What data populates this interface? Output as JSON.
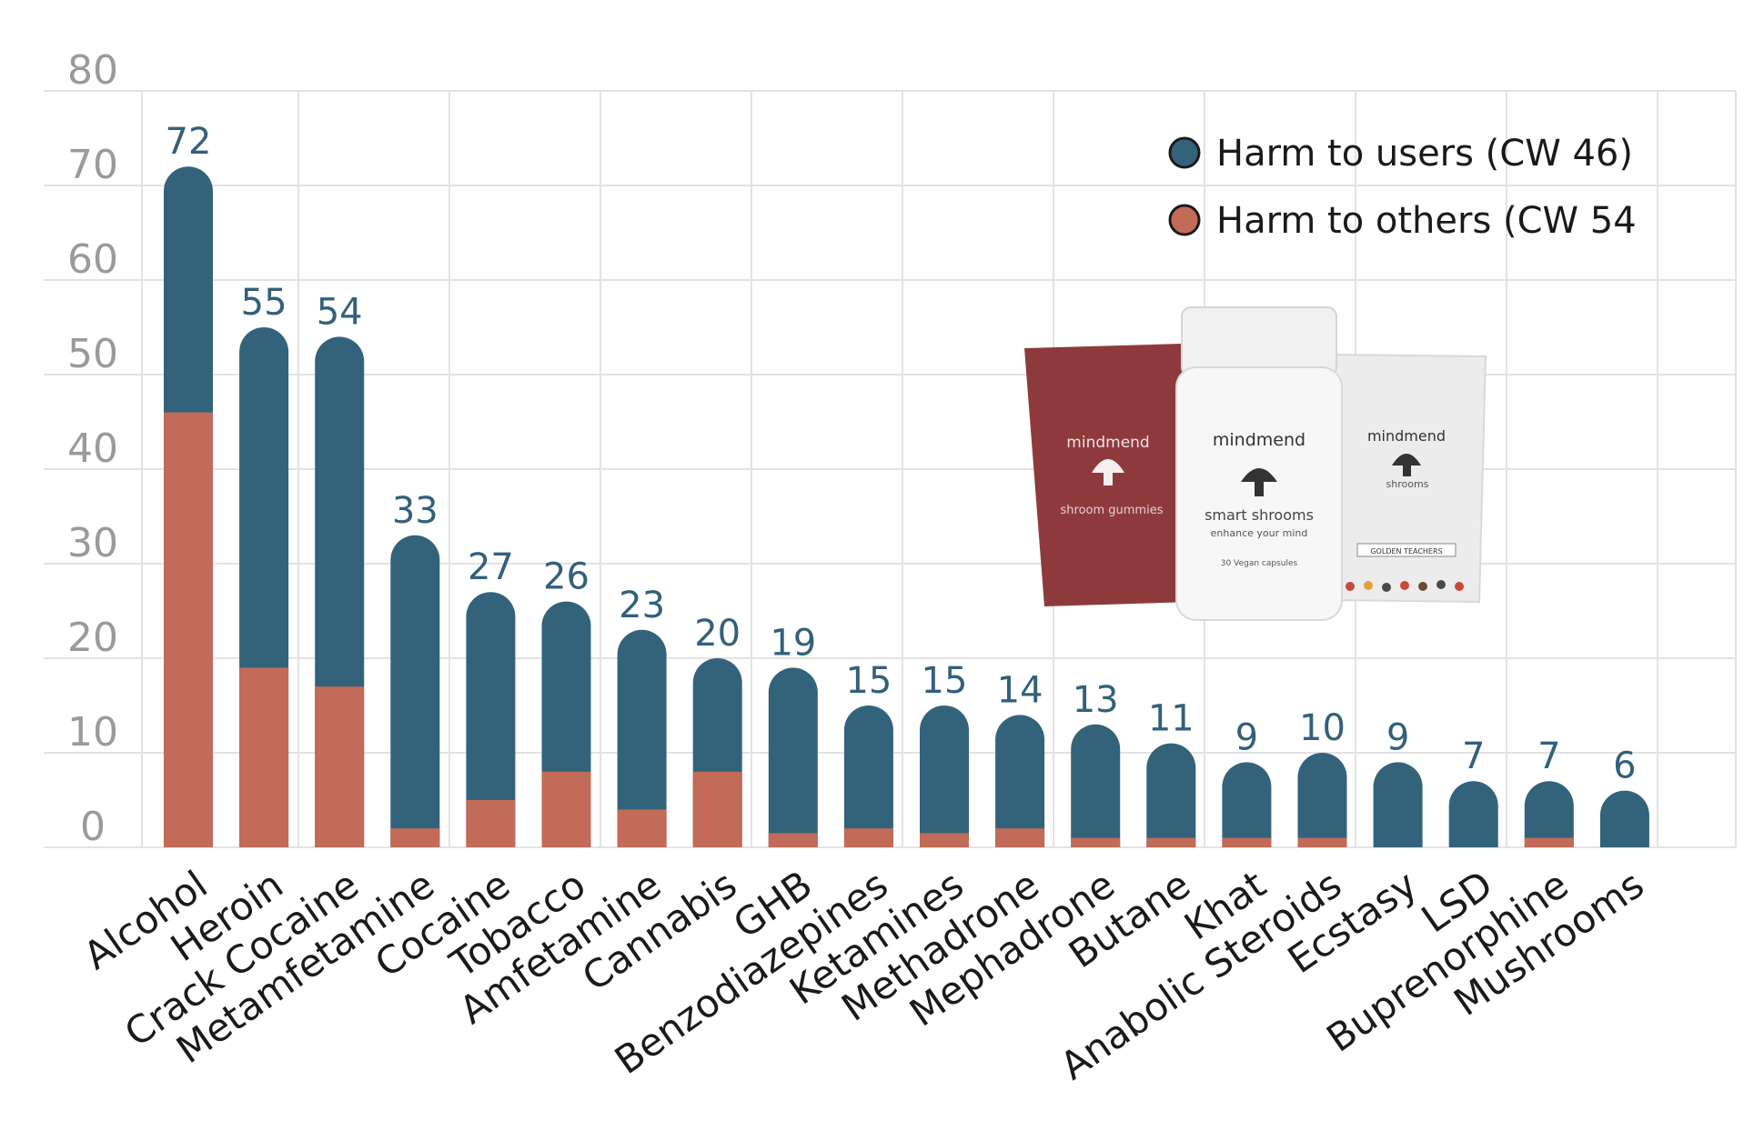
{
  "colors": {
    "users": "#33637a",
    "others": "#c26b58",
    "grid": "#e3e3e3",
    "tick_text": "#9a9a9a",
    "value_text": "#33607a"
  },
  "legend": {
    "users_label": "Harm to users (CW 46)",
    "others_label": "Harm to others (CW 54"
  },
  "product_image": {
    "pouch_left_brand": "mindmend",
    "pouch_left_name": "shroom gummies",
    "bottle_brand": "mindmend",
    "bottle_name": "smart shrooms",
    "bottle_tagline": "enhance your mind",
    "bottle_detail": "30 Vegan capsules",
    "pouch_right_brand": "mindmend",
    "pouch_right_name": "shrooms",
    "pouch_right_label": "GOLDEN TEACHERS"
  },
  "chart_data": {
    "type": "bar",
    "stacked": true,
    "title": "",
    "xlabel": "",
    "ylabel": "",
    "ylim": [
      0,
      80
    ],
    "yticks": [
      0,
      10,
      20,
      30,
      40,
      50,
      60,
      70,
      80
    ],
    "grid": true,
    "legend_position": "top-right",
    "categories": [
      "Alcohol",
      "Heroin",
      "Crack Cocaine",
      "Metamfetamine",
      "Cocaine",
      "Tobacco",
      "Amfetamine",
      "Cannabis",
      "GHB",
      "Benzodiazepines",
      "Ketamines",
      "Methadrone",
      "Mephadrone",
      "Butane",
      "Khat",
      "Anabolic Steroids",
      "Ecstasy",
      "LSD",
      "Buprenorphine",
      "Mushrooms"
    ],
    "totals": [
      72,
      55,
      54,
      33,
      27,
      26,
      23,
      20,
      19,
      15,
      15,
      14,
      13,
      11,
      9,
      10,
      9,
      7,
      7,
      6
    ],
    "series": [
      {
        "name": "Harm to others (CW 54",
        "values": [
          46,
          19,
          17,
          2,
          5,
          8,
          4,
          8,
          1.5,
          2,
          1.5,
          2,
          1,
          1,
          1,
          1,
          0,
          0,
          1,
          0
        ]
      },
      {
        "name": "Harm to users (CW 46)",
        "values": [
          26,
          36,
          37,
          31,
          22,
          18,
          19,
          12,
          17.5,
          13,
          13.5,
          12,
          12,
          10,
          8,
          9,
          9,
          7,
          6,
          6
        ]
      }
    ]
  }
}
